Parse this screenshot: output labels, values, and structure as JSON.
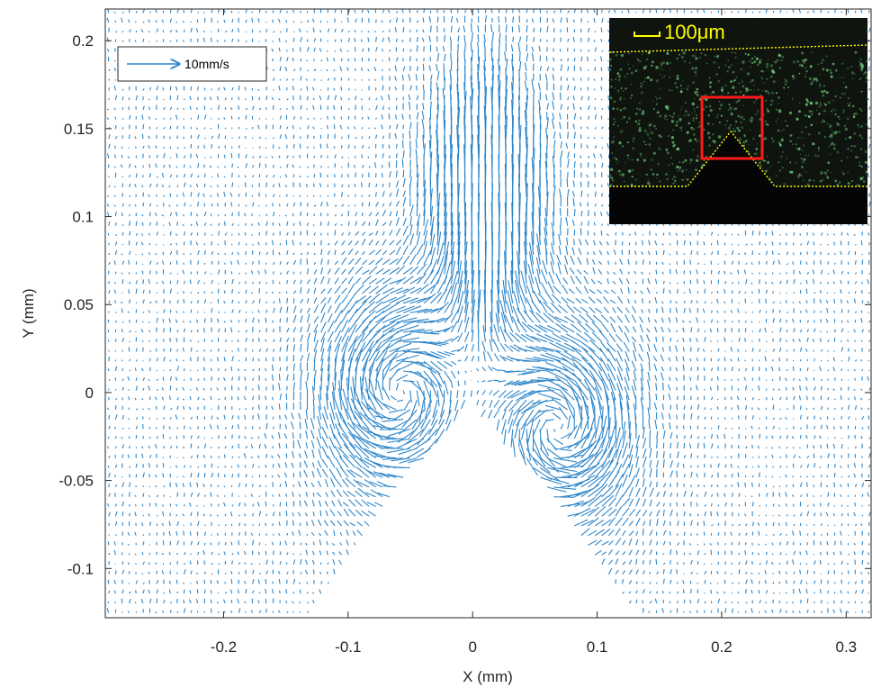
{
  "chart_data": {
    "type": "quiver",
    "xlabel": "X (mm)",
    "ylabel": "Y (mm)",
    "xlim": [
      -0.295,
      0.32
    ],
    "ylim": [
      -0.128,
      0.218
    ],
    "xticks": [
      -0.2,
      -0.1,
      0,
      0.1,
      0.2,
      0.3
    ],
    "xtick_labels": [
      "-0.2",
      "-0.1",
      "0",
      "0.1",
      "0.2",
      "0.3"
    ],
    "yticks": [
      -0.1,
      -0.05,
      0,
      0.05,
      0.1,
      0.15,
      0.2
    ],
    "ytick_labels": [
      "-0.1",
      "-0.05",
      "0",
      "0.05",
      "0.1",
      "0.15",
      "0.2"
    ],
    "grid": false,
    "legend": {
      "label": "10mm/s",
      "reference_speed_mm_s": 10,
      "placement": "top-left"
    },
    "series": [
      {
        "color": "#2e86c9",
        "grid_spacing_mm": 0.0055,
        "excluded_region": "triangular obstacle with apex at (0, 0) widening downward",
        "flow_features": [
          {
            "kind": "central upward jet",
            "x": 0.01,
            "y": 0.09,
            "speed_mm_s": 9
          },
          {
            "kind": "left vortex",
            "x": -0.06,
            "y": 0.0,
            "speed_mm_s": 6
          },
          {
            "kind": "right vortex",
            "x": 0.07,
            "y": -0.02,
            "speed_mm_s": 6
          },
          {
            "kind": "background",
            "speed_mm_s": 1
          }
        ]
      }
    ]
  },
  "inset": {
    "scale_bar_label": "100μm",
    "colors": {
      "background": "#0f140f",
      "boundary": "#ffff00",
      "roi_box": "#ff1a1a",
      "scale": "#ffff00"
    }
  }
}
